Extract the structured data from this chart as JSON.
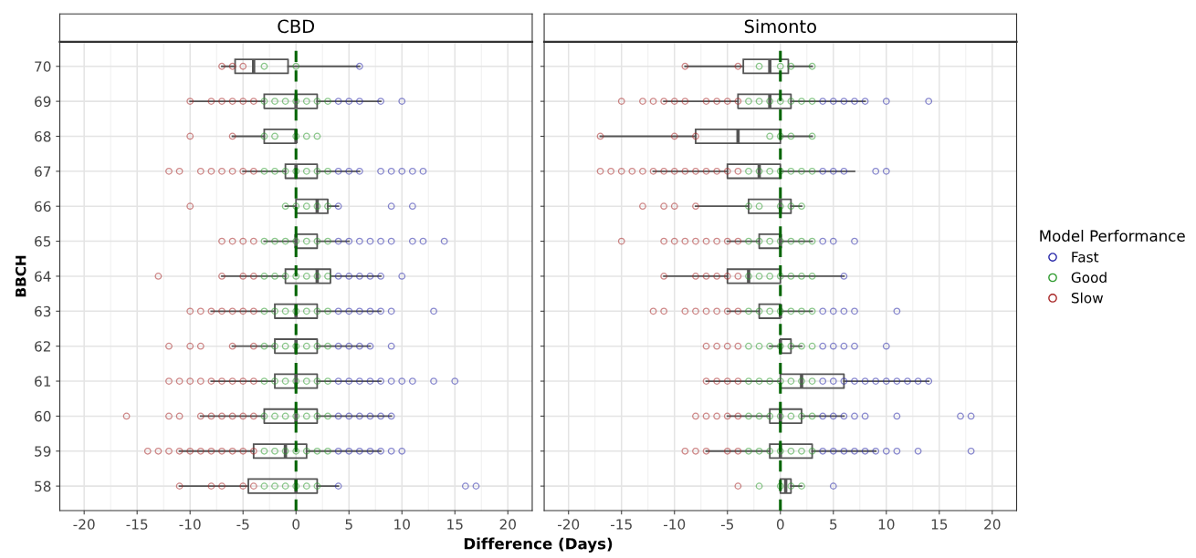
{
  "chart_data": [
    {
      "type": "box",
      "orientation": "horizontal",
      "title": "CBD",
      "ylabel": "BBCH",
      "xlabel": "Difference (Days)",
      "color": "#555555",
      "legend": "right",
      "legend_title": "Model Performance",
      "categories": [
        "70",
        "69",
        "68",
        "67",
        "66",
        "65",
        "64",
        "63",
        "62",
        "61",
        "60",
        "59",
        "58"
      ],
      "xlim": [
        -22.3,
        22.3
      ],
      "xticks": [
        -20,
        -15,
        -10,
        -5,
        0,
        5,
        10,
        15,
        20
      ],
      "grid": true,
      "marker": "circle",
      "ref_lines": [
        {
          "axis": "x",
          "value": 0,
          "color": "#006400",
          "line_style": "dashed"
        }
      ],
      "boxes": [
        {
          "low": -7,
          "q1": -5.75,
          "median": -4,
          "q3": -0.75,
          "high": 6
        },
        {
          "low": -10,
          "q1": -3,
          "median": 0,
          "q3": 2,
          "high": 8
        },
        {
          "low": -6,
          "q1": -3,
          "median": 0,
          "q3": 0,
          "high": 0
        },
        {
          "low": -5,
          "q1": -1,
          "median": 0,
          "q3": 2,
          "high": 6
        },
        {
          "low": -1,
          "q1": 0,
          "median": 2,
          "q3": 3,
          "high": 4
        },
        {
          "low": -3,
          "q1": 0,
          "median": 0,
          "q3": 2,
          "high": 5
        },
        {
          "low": -7,
          "q1": -1,
          "median": 2,
          "q3": 3.25,
          "high": 8
        },
        {
          "low": -8,
          "q1": -2,
          "median": 0,
          "q3": 2,
          "high": 8
        },
        {
          "low": -6,
          "q1": -2,
          "median": 0,
          "q3": 2,
          "high": 7
        },
        {
          "low": -8,
          "q1": -2,
          "median": 0,
          "q3": 2,
          "high": 8
        },
        {
          "low": -9,
          "q1": -3,
          "median": 0,
          "q3": 2,
          "high": 9
        },
        {
          "low": -11,
          "q1": -4,
          "median": -1,
          "q3": 1,
          "high": 8
        },
        {
          "low": -11,
          "q1": -4.5,
          "median": 0,
          "q3": 2,
          "high": 4
        }
      ],
      "series": [
        {
          "name": "Fast",
          "type": "scatter",
          "color": "#2828a8",
          "x": [
            "70",
            "69",
            "69",
            "69",
            "69",
            "69",
            "67",
            "67",
            "67",
            "67",
            "67",
            "67",
            "67",
            "67",
            "66",
            "66",
            "66",
            "65",
            "65",
            "65",
            "65",
            "65",
            "65",
            "65",
            "65",
            "65",
            "64",
            "64",
            "64",
            "64",
            "64",
            "64",
            "63",
            "63",
            "63",
            "63",
            "63",
            "63",
            "63",
            "62",
            "62",
            "62",
            "62",
            "62",
            "61",
            "61",
            "61",
            "61",
            "61",
            "61",
            "61",
            "61",
            "61",
            "61",
            "60",
            "60",
            "60",
            "60",
            "60",
            "60",
            "59",
            "59",
            "59",
            "59",
            "59",
            "59",
            "59",
            "58",
            "58",
            "58"
          ],
          "values": [
            6,
            4,
            5,
            6,
            8,
            10,
            4,
            5,
            6,
            8,
            9,
            10,
            11,
            12,
            4,
            9,
            11,
            4,
            5,
            6,
            7,
            8,
            9,
            11,
            12,
            14,
            4,
            5,
            6,
            7,
            8,
            10,
            4,
            5,
            6,
            7,
            8,
            9,
            13,
            4,
            5,
            6,
            7,
            9,
            4,
            5,
            6,
            7,
            8,
            9,
            10,
            11,
            13,
            15,
            4,
            5,
            6,
            7,
            8,
            9,
            4,
            5,
            6,
            7,
            8,
            9,
            10,
            4,
            16,
            17
          ]
        },
        {
          "name": "Good",
          "type": "scatter",
          "color": "#2e9a2e",
          "x": [
            "70",
            "70",
            "69",
            "69",
            "69",
            "69",
            "69",
            "69",
            "69",
            "68",
            "68",
            "68",
            "68",
            "68",
            "67",
            "67",
            "67",
            "67",
            "67",
            "67",
            "67",
            "66",
            "66",
            "66",
            "66",
            "66",
            "65",
            "65",
            "65",
            "65",
            "65",
            "65",
            "65",
            "64",
            "64",
            "64",
            "64",
            "64",
            "64",
            "64",
            "63",
            "63",
            "63",
            "63",
            "63",
            "63",
            "63",
            "62",
            "62",
            "62",
            "62",
            "62",
            "62",
            "62",
            "61",
            "61",
            "61",
            "61",
            "61",
            "61",
            "61",
            "60",
            "60",
            "60",
            "60",
            "60",
            "60",
            "60",
            "59",
            "59",
            "59",
            "59",
            "59",
            "59",
            "59",
            "58",
            "58",
            "58",
            "58",
            "58",
            "58"
          ],
          "values": [
            -3,
            0,
            -3,
            -2,
            -1,
            0,
            1,
            2,
            3,
            -3,
            -2,
            0,
            1,
            2,
            -3,
            -2,
            -1,
            0,
            1,
            2,
            3,
            -1,
            0,
            1,
            2,
            3,
            -3,
            -2,
            -1,
            0,
            1,
            2,
            3,
            -3,
            -2,
            -1,
            0,
            1,
            2,
            3,
            -3,
            -2,
            -1,
            0,
            1,
            2,
            3,
            -3,
            -2,
            -1,
            0,
            1,
            2,
            3,
            -3,
            -2,
            -1,
            0,
            1,
            2,
            3,
            -3,
            -2,
            -1,
            0,
            1,
            2,
            3,
            -3,
            -2,
            -1,
            0,
            1,
            2,
            3,
            -3,
            -2,
            -1,
            0,
            1,
            2
          ]
        },
        {
          "name": "Slow",
          "type": "scatter",
          "color": "#a82828",
          "x": [
            "70",
            "70",
            "70",
            "69",
            "69",
            "69",
            "69",
            "69",
            "69",
            "68",
            "68",
            "67",
            "67",
            "67",
            "67",
            "67",
            "67",
            "67",
            "67",
            "66",
            "65",
            "65",
            "65",
            "65",
            "64",
            "64",
            "64",
            "64",
            "63",
            "63",
            "63",
            "63",
            "63",
            "63",
            "63",
            "62",
            "62",
            "62",
            "62",
            "62",
            "61",
            "61",
            "61",
            "61",
            "61",
            "61",
            "61",
            "61",
            "61",
            "60",
            "60",
            "60",
            "60",
            "60",
            "60",
            "60",
            "60",
            "60",
            "59",
            "59",
            "59",
            "59",
            "59",
            "59",
            "59",
            "59",
            "59",
            "59",
            "59",
            "58",
            "58",
            "58",
            "58",
            "58"
          ],
          "values": [
            -7,
            -6,
            -5,
            -10,
            -8,
            -7,
            -6,
            -5,
            -4,
            -10,
            -6,
            -12,
            -11,
            -9,
            -8,
            -7,
            -6,
            -5,
            -4,
            -10,
            -7,
            -6,
            -5,
            -4,
            -13,
            -7,
            -5,
            -4,
            -10,
            -9,
            -8,
            -7,
            -6,
            -5,
            -4,
            -12,
            -10,
            -9,
            -6,
            -4,
            -12,
            -11,
            -10,
            -9,
            -8,
            -7,
            -6,
            -5,
            -4,
            -16,
            -12,
            -11,
            -9,
            -8,
            -7,
            -6,
            -5,
            -4,
            -14,
            -13,
            -12,
            -11,
            -10,
            -9,
            -8,
            -7,
            -6,
            -5,
            -4,
            -11,
            -8,
            -7,
            -5,
            -4
          ]
        }
      ]
    },
    {
      "type": "box",
      "orientation": "horizontal",
      "title": "Simonto",
      "color": "#555555",
      "tick_labels": "x",
      "categories": [
        "70",
        "69",
        "68",
        "67",
        "66",
        "65",
        "64",
        "63",
        "62",
        "61",
        "60",
        "59",
        "58"
      ],
      "xlim": [
        -22.3,
        22.3
      ],
      "xticks": [
        -20,
        -15,
        -10,
        -5,
        0,
        5,
        10,
        15,
        20
      ],
      "grid": true,
      "marker": "circle",
      "ref_lines": [
        {
          "axis": "x",
          "value": 0,
          "color": "#006400",
          "line_style": "dashed"
        }
      ],
      "boxes": [
        {
          "low": -9,
          "q1": -3.5,
          "median": -1,
          "q3": 0.75,
          "high": 3
        },
        {
          "low": -11,
          "q1": -4,
          "median": -1,
          "q3": 1,
          "high": 8
        },
        {
          "low": -17,
          "q1": -8,
          "median": -4,
          "q3": 0,
          "high": 3
        },
        {
          "low": -12,
          "q1": -5,
          "median": -2,
          "q3": 0,
          "high": 7
        },
        {
          "low": -8,
          "q1": -3,
          "median": 0,
          "q3": 1,
          "high": 2
        },
        {
          "low": -5,
          "q1": -2,
          "median": 0,
          "q3": 0,
          "high": 3
        },
        {
          "low": -11,
          "q1": -5,
          "median": -3,
          "q3": 0,
          "high": 6
        },
        {
          "low": -5,
          "q1": -2,
          "median": 0,
          "q3": 0,
          "high": 3
        },
        {
          "low": -1,
          "q1": 0,
          "median": 0,
          "q3": 1,
          "high": 2
        },
        {
          "low": -7,
          "q1": 0,
          "median": 2,
          "q3": 6,
          "high": 14
        },
        {
          "low": -5,
          "q1": -1,
          "median": 0,
          "q3": 2,
          "high": 6
        },
        {
          "low": -7,
          "q1": -1,
          "median": 0,
          "q3": 3,
          "high": 9
        },
        {
          "low": 0,
          "q1": 0,
          "median": 0.5,
          "q3": 1,
          "high": 2
        }
      ],
      "series": [
        {
          "type": "scatter",
          "color": "#2828a8",
          "x": [
            "69",
            "69",
            "69",
            "69",
            "69",
            "69",
            "69",
            "67",
            "67",
            "67",
            "67",
            "67",
            "65",
            "65",
            "65",
            "64",
            "63",
            "63",
            "63",
            "63",
            "63",
            "62",
            "62",
            "62",
            "62",
            "62",
            "61",
            "61",
            "61",
            "61",
            "61",
            "61",
            "61",
            "61",
            "61",
            "61",
            "61",
            "60",
            "60",
            "60",
            "60",
            "60",
            "60",
            "60",
            "60",
            "59",
            "59",
            "59",
            "59",
            "59",
            "59",
            "59",
            "59",
            "59",
            "59",
            "58"
          ],
          "values": [
            4,
            5,
            6,
            7,
            8,
            10,
            14,
            4,
            5,
            6,
            9,
            10,
            4,
            5,
            7,
            6,
            4,
            5,
            6,
            7,
            11,
            4,
            5,
            6,
            7,
            10,
            4,
            5,
            6,
            7,
            8,
            9,
            10,
            11,
            12,
            13,
            14,
            4,
            5,
            6,
            7,
            8,
            11,
            17,
            18,
            4,
            5,
            6,
            7,
            8,
            9,
            10,
            11,
            13,
            18,
            5
          ]
        },
        {
          "type": "scatter",
          "color": "#2e9a2e",
          "x": [
            "70",
            "70",
            "70",
            "70",
            "69",
            "69",
            "69",
            "69",
            "69",
            "69",
            "69",
            "68",
            "68",
            "68",
            "68",
            "67",
            "67",
            "67",
            "67",
            "67",
            "67",
            "67",
            "66",
            "66",
            "66",
            "66",
            "66",
            "65",
            "65",
            "65",
            "65",
            "65",
            "65",
            "65",
            "64",
            "64",
            "64",
            "64",
            "64",
            "64",
            "64",
            "63",
            "63",
            "63",
            "63",
            "63",
            "63",
            "63",
            "62",
            "62",
            "62",
            "62",
            "62",
            "62",
            "62",
            "61",
            "61",
            "61",
            "61",
            "61",
            "61",
            "61",
            "60",
            "60",
            "60",
            "60",
            "60",
            "60",
            "60",
            "59",
            "59",
            "59",
            "59",
            "59",
            "59",
            "59",
            "58",
            "58",
            "58",
            "58"
          ],
          "values": [
            -2,
            0,
            1,
            3,
            -3,
            -2,
            -1,
            0,
            1,
            2,
            3,
            -1,
            0,
            1,
            3,
            -3,
            -2,
            -1,
            0,
            1,
            2,
            3,
            -3,
            -2,
            0,
            1,
            2,
            -3,
            -2,
            -1,
            0,
            1,
            2,
            3,
            -3,
            -2,
            -1,
            0,
            1,
            2,
            3,
            -3,
            -2,
            -1,
            0,
            1,
            2,
            3,
            -3,
            -2,
            -1,
            0,
            1,
            2,
            3,
            -3,
            -2,
            -1,
            0,
            1,
            2,
            3,
            -3,
            -2,
            -1,
            0,
            1,
            2,
            3,
            -3,
            -2,
            -1,
            0,
            1,
            2,
            3,
            -2,
            0,
            1,
            2
          ]
        },
        {
          "type": "scatter",
          "color": "#a82828",
          "x": [
            "70",
            "70",
            "69",
            "69",
            "69",
            "69",
            "69",
            "69",
            "69",
            "69",
            "69",
            "69",
            "68",
            "68",
            "68",
            "67",
            "67",
            "67",
            "67",
            "67",
            "67",
            "67",
            "67",
            "67",
            "67",
            "67",
            "67",
            "67",
            "67",
            "66",
            "66",
            "66",
            "66",
            "65",
            "65",
            "65",
            "65",
            "65",
            "65",
            "65",
            "65",
            "65",
            "64",
            "64",
            "64",
            "64",
            "64",
            "64",
            "63",
            "63",
            "63",
            "63",
            "63",
            "63",
            "63",
            "63",
            "62",
            "62",
            "62",
            "62",
            "61",
            "61",
            "61",
            "61",
            "60",
            "60",
            "60",
            "60",
            "60",
            "59",
            "59",
            "59",
            "59",
            "59",
            "58"
          ],
          "values": [
            -9,
            -4,
            -15,
            -13,
            -12,
            -11,
            -10,
            -9,
            -7,
            -6,
            -5,
            -4,
            -17,
            -10,
            -8,
            -17,
            -16,
            -15,
            -14,
            -13,
            -12,
            -11,
            -10,
            -9,
            -8,
            -7,
            -6,
            -5,
            -4,
            -13,
            -11,
            -10,
            -8,
            -15,
            -11,
            -10,
            -9,
            -8,
            -7,
            -6,
            -5,
            -4,
            -11,
            -8,
            -7,
            -6,
            -5,
            -4,
            -12,
            -11,
            -9,
            -8,
            -7,
            -6,
            -5,
            -4,
            -7,
            -6,
            -5,
            -4,
            -7,
            -6,
            -5,
            -4,
            -8,
            -7,
            -6,
            -5,
            -4,
            -9,
            -8,
            -7,
            -5,
            -4,
            -4
          ]
        }
      ]
    }
  ]
}
